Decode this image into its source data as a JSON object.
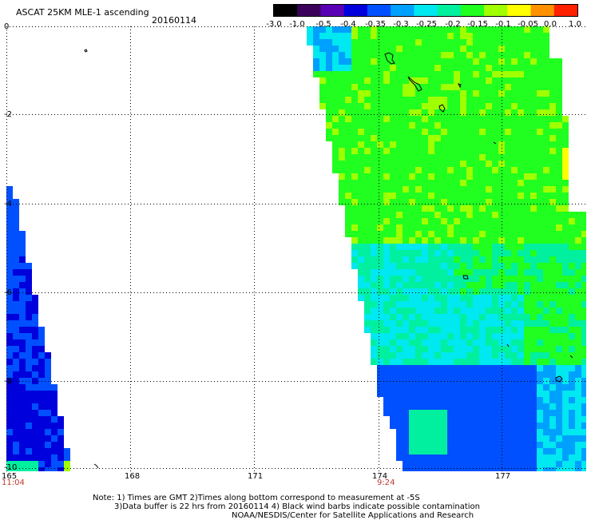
{
  "header": {
    "title": "ASCAT 25KM MLE-1 ascending",
    "date": "20160114"
  },
  "colorbar": {
    "labels": [
      "-3.0",
      "-1.0",
      "-0.5",
      "-0.4",
      "-0.35",
      "-0.3",
      "-0.25",
      "-0.2",
      "-0.15",
      "-0.1",
      "-0.05",
      "0.0",
      "1.0"
    ],
    "colors": [
      "#000000",
      "#3a005a",
      "#5a00b4",
      "#0000dc",
      "#0050ff",
      "#00a0ff",
      "#00e8f0",
      "#00f0a0",
      "#20ff20",
      "#a0ff00",
      "#ffff00",
      "#ff9000",
      "#ff2000"
    ]
  },
  "axes": {
    "x_ticks": [
      "165",
      "168",
      "171",
      "174",
      "177"
    ],
    "y_ticks": [
      "0",
      "-2",
      "-4",
      "-6",
      "-8",
      "-10"
    ],
    "time_labels": [
      "11:04",
      "9:24"
    ]
  },
  "footer": {
    "line1": "Note: 1) Times are GMT 2)Times along bottom correspond to measurement at -5S",
    "line2": "3)Data buffer is 22 hrs from 20160114 4) Black wind barbs indicate possible contamination",
    "line3": "NOAA/NESDIS/Center for Satellite Applications and Research"
  },
  "map": {
    "lon_range": [
      165,
      179.2
    ],
    "lat_range": [
      -10,
      0
    ],
    "grid": true
  }
}
